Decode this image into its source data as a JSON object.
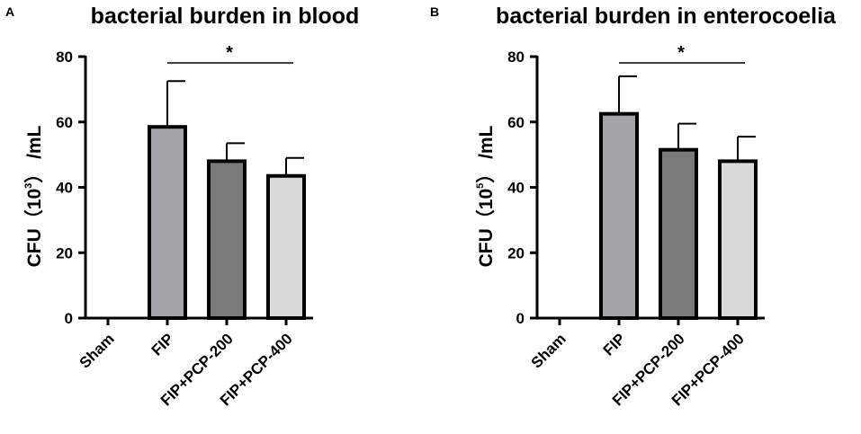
{
  "chart_data": [
    {
      "panel": "A",
      "type": "bar",
      "title": "bacterial burden in blood",
      "ylabel": {
        "prefix": "CFU（",
        "base": "10",
        "exponent": "3",
        "suffix": "） /mL"
      },
      "ylim": [
        0,
        80
      ],
      "yticks": [
        "0",
        "20",
        "40",
        "60",
        "80"
      ],
      "categories": [
        "Sham",
        "FIP",
        "FIP+PCP-200",
        "FIP+PCP-400"
      ],
      "values": [
        0,
        58.5,
        48,
        43.5
      ],
      "errors": [
        0,
        14,
        5.5,
        5.5
      ],
      "colors": [
        "#ffffff",
        "#a3a3a8",
        "#7a7a7a",
        "#d9d9d9"
      ],
      "significance": {
        "from": "FIP",
        "to": "FIP+PCP-400",
        "label": "*",
        "y": 80
      }
    },
    {
      "panel": "B",
      "type": "bar",
      "title": "bacterial burden in enterocoelia",
      "ylabel": {
        "prefix": "CFU（",
        "base": "10",
        "exponent": "5",
        "suffix": "） /mL"
      },
      "ylim": [
        0,
        80
      ],
      "yticks": [
        "0",
        "20",
        "40",
        "60",
        "80"
      ],
      "categories": [
        "Sham",
        "FIP",
        "FIP+PCP-200",
        "FIP+PCP-400"
      ],
      "values": [
        0,
        62.5,
        51.5,
        48
      ],
      "errors": [
        0,
        11.5,
        8,
        7.5
      ],
      "colors": [
        "#ffffff",
        "#a3a3a8",
        "#7a7a7a",
        "#d9d9d9"
      ],
      "significance": {
        "from": "FIP",
        "to": "FIP+PCP-400",
        "label": "*",
        "y": 80
      }
    }
  ]
}
